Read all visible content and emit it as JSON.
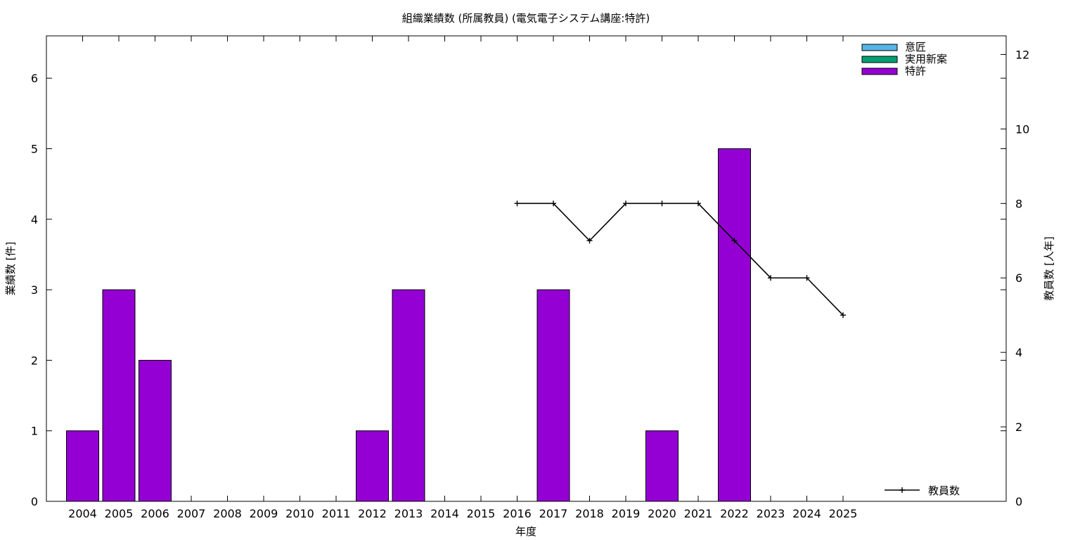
{
  "chart_data": {
    "type": "bar",
    "title": "組織業績数 (所属教員) (電気電子システム講座:特許)",
    "xlabel": "年度",
    "ylabel": "業績数 [件]",
    "y2label": "教員数 [人年]",
    "categories": [
      "2004",
      "2005",
      "2006",
      "2007",
      "2008",
      "2009",
      "2010",
      "2011",
      "2012",
      "2013",
      "2014",
      "2015",
      "2016",
      "2017",
      "2018",
      "2019",
      "2020",
      "2021",
      "2022",
      "2023",
      "2024",
      "2025"
    ],
    "ylim": [
      0,
      6.6
    ],
    "yticks": [
      0,
      1,
      2,
      3,
      4,
      5,
      6
    ],
    "y2lim": [
      0,
      12.5
    ],
    "y2ticks": [
      0,
      2,
      4,
      6,
      8,
      10,
      12
    ],
    "grid": false,
    "legend_position": "top-right",
    "series": [
      {
        "name": "意匠",
        "type": "bar",
        "color": "#56b4e9",
        "values": [
          0,
          0,
          0,
          0,
          0,
          0,
          0,
          0,
          0,
          0,
          0,
          0,
          0,
          0,
          0,
          0,
          0,
          0,
          0,
          0,
          0,
          0
        ]
      },
      {
        "name": "実用新案",
        "type": "bar",
        "color": "#009e73",
        "values": [
          0,
          0,
          0,
          0,
          0,
          0,
          0,
          0,
          0,
          0,
          0,
          0,
          0,
          0,
          0,
          0,
          0,
          0,
          0,
          0,
          0,
          0
        ]
      },
      {
        "name": "特許",
        "type": "bar",
        "color": "#9400d3",
        "values": [
          1,
          3,
          2,
          0,
          0,
          0,
          0,
          0,
          1,
          3,
          0,
          0,
          0,
          3,
          0,
          0,
          1,
          0,
          5,
          0,
          0,
          0
        ]
      }
    ],
    "line_series": {
      "name": "教員数",
      "axis": "y2",
      "color": "#000000",
      "legend_position": "bottom-right",
      "x": [
        "2016",
        "2017",
        "2018",
        "2019",
        "2020",
        "2021",
        "2022",
        "2023",
        "2024",
        "2025"
      ],
      "values": [
        8,
        8,
        7,
        8,
        8,
        8,
        7,
        6,
        6,
        5
      ]
    }
  }
}
